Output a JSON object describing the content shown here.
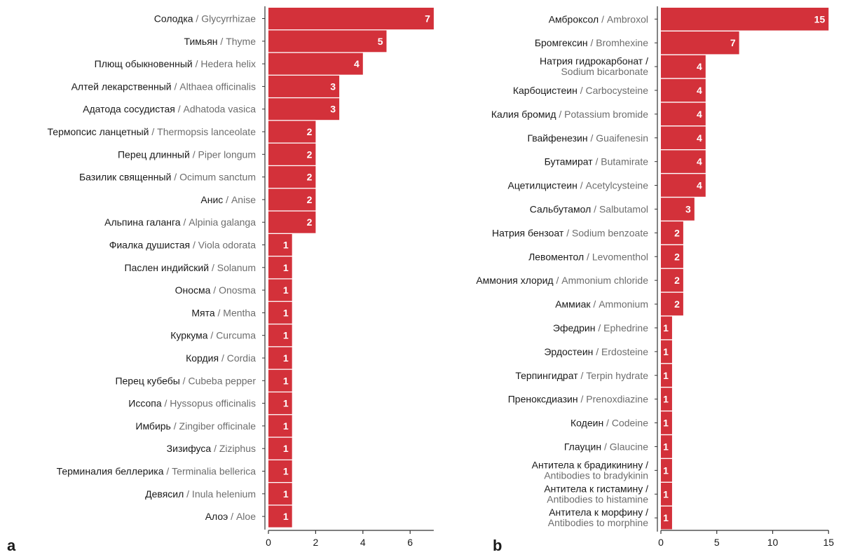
{
  "colors": {
    "bar": "#D3313A",
    "axis": "#333333",
    "label_ru": "#1a1a1a",
    "label_en": "#6d6d6d"
  },
  "chart_data": [
    {
      "type": "bar",
      "orientation": "horizontal",
      "panel": "a",
      "xlim": [
        0,
        7
      ],
      "xticks": [
        0,
        2,
        4,
        6
      ],
      "categories": [
        {
          "ru": "Солодка",
          "en": "Glycyrrhizae",
          "value": 7
        },
        {
          "ru": "Тимьян",
          "en": "Thyme",
          "value": 5
        },
        {
          "ru": "Плющ обыкновенный",
          "en": "Hedera helix",
          "value": 4
        },
        {
          "ru": "Алтей лекарственный",
          "en": "Althaea officinalis",
          "value": 3
        },
        {
          "ru": "Адатода сосудистая",
          "en": "Adhatoda vasica",
          "value": 3
        },
        {
          "ru": "Термопсис ланцетный",
          "en": "Thermopsis lanceolate",
          "value": 2
        },
        {
          "ru": "Перец длинный",
          "en": "Piper longum",
          "value": 2
        },
        {
          "ru": "Базилик священный",
          "en": "Ocimum sanctum",
          "value": 2
        },
        {
          "ru": "Анис",
          "en": "Anise",
          "value": 2
        },
        {
          "ru": "Альпина галанга",
          "en": "Alpinia galanga",
          "value": 2
        },
        {
          "ru": "Фиалка душистая",
          "en": "Viola odorata",
          "value": 1
        },
        {
          "ru": "Паслен индийский",
          "en": "Solanum",
          "value": 1
        },
        {
          "ru": "Оносма",
          "en": "Onosma",
          "value": 1
        },
        {
          "ru": "Мята",
          "en": "Mentha",
          "value": 1
        },
        {
          "ru": "Куркума",
          "en": "Curcuma",
          "value": 1
        },
        {
          "ru": "Кордия",
          "en": "Cordia",
          "value": 1
        },
        {
          "ru": "Перец кубебы",
          "en": "Cubeba pepper",
          "value": 1
        },
        {
          "ru": "Иссопа",
          "en": "Hyssopus officinalis",
          "value": 1
        },
        {
          "ru": "Имбирь",
          "en": "Zingiber officinale",
          "value": 1
        },
        {
          "ru": "Зизифуса",
          "en": "Ziziphus",
          "value": 1
        },
        {
          "ru": "Терминалия беллерика",
          "en": "Terminalia bellerica",
          "value": 1
        },
        {
          "ru": "Девясил",
          "en": "Inula helenium",
          "value": 1
        },
        {
          "ru": "Алоэ",
          "en": "Aloe",
          "value": 1
        }
      ]
    },
    {
      "type": "bar",
      "orientation": "horizontal",
      "panel": "b",
      "xlim": [
        0,
        15
      ],
      "xticks": [
        0,
        5,
        10,
        15
      ],
      "categories": [
        {
          "ru": "Амброксол",
          "en": "Ambroxol",
          "value": 15
        },
        {
          "ru": "Бромгексин",
          "en": "Bromhexine",
          "value": 7
        },
        {
          "ru": "Натрия гидрокарбонат",
          "en": "Sodium bicarbonate",
          "value": 4,
          "two_line": true
        },
        {
          "ru": "Карбоцистеин",
          "en": "Carbocysteine",
          "value": 4
        },
        {
          "ru": "Калия бромид",
          "en": "Potassium bromide",
          "value": 4
        },
        {
          "ru": "Гвайфенезин",
          "en": "Guaifenesin",
          "value": 4
        },
        {
          "ru": "Бутамират",
          "en": "Butamirate",
          "value": 4
        },
        {
          "ru": "Ацетилцистеин",
          "en": "Acetylcysteine",
          "value": 4
        },
        {
          "ru": "Сальбутамол",
          "en": "Salbutamol",
          "value": 3
        },
        {
          "ru": "Натрия бензоат",
          "en": "Sodium benzoate",
          "value": 2
        },
        {
          "ru": "Левоментол",
          "en": "Levomenthol",
          "value": 2
        },
        {
          "ru": "Аммония хлорид",
          "en": "Ammonium chloride",
          "value": 2
        },
        {
          "ru": "Аммиак",
          "en": "Ammonium",
          "value": 2
        },
        {
          "ru": "Эфедрин",
          "en": "Ephedrine",
          "value": 1
        },
        {
          "ru": "Эрдостеин",
          "en": "Erdosteine",
          "value": 1
        },
        {
          "ru": "Терпингидрат",
          "en": "Terpin hydrate",
          "value": 1
        },
        {
          "ru": "Пренокcдиазин",
          "en": "Prenoxdiazine",
          "value": 1
        },
        {
          "ru": "Кодеин",
          "en": "Codeine",
          "value": 1
        },
        {
          "ru": "Глауцин",
          "en": "Glaucine",
          "value": 1
        },
        {
          "ru": "Антитела к брадикинину",
          "en": "Antibodies to bradykinin",
          "value": 1,
          "two_line": true
        },
        {
          "ru": "Антитела к гистамину",
          "en": "Antibodies to histamine",
          "value": 1,
          "two_line": true
        },
        {
          "ru": "Антитела к морфину",
          "en": "Antibodies to morphine",
          "value": 1,
          "two_line": true
        }
      ]
    }
  ]
}
